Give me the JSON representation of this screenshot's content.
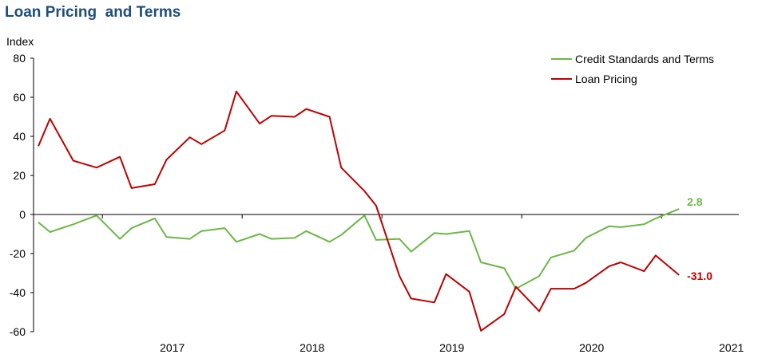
{
  "chart_data": {
    "type": "line",
    "title": "Loan Pricing  and Terms",
    "ylabel": "Index",
    "xlabel": "",
    "ylim": [
      -60,
      80
    ],
    "yticks": [
      80,
      60,
      40,
      20,
      0,
      -20,
      -40,
      -60
    ],
    "x_tick_labels": [
      "2017",
      "2018",
      "2019",
      "2020",
      "2021"
    ],
    "x": [
      "2016-07",
      "2016-08",
      "2016-10",
      "2016-12",
      "2017-02",
      "2017-03",
      "2017-05",
      "2017-06",
      "2017-08",
      "2017-09",
      "2017-11",
      "2017-12",
      "2018-02",
      "2018-03",
      "2018-05",
      "2018-06",
      "2018-08",
      "2018-09",
      "2018-11",
      "2018-12",
      "2019-02",
      "2019-03",
      "2019-05",
      "2019-06",
      "2019-08",
      "2019-09",
      "2019-11",
      "2019-12",
      "2020-02",
      "2020-03",
      "2020-05",
      "2020-06",
      "2020-08",
      "2020-09",
      "2020-11",
      "2020-12",
      "2021-02"
    ],
    "series": [
      {
        "name": "Credit Standards and Terms",
        "color": "#6ab845",
        "values": [
          -4,
          -9,
          -5,
          -0.5,
          -12.5,
          -7,
          -2,
          -11.5,
          -12.5,
          -8.5,
          -7,
          -14,
          -10,
          -12.5,
          -12,
          -8.5,
          -14,
          -10.5,
          -0.5,
          -13,
          -12.5,
          -19,
          -9.5,
          -10,
          -8.5,
          -24.5,
          -27.5,
          -38,
          -31.5,
          -22,
          -18.5,
          -12,
          -6,
          -6.5,
          -5,
          -2,
          2.8
        ],
        "end_label": "2.8"
      },
      {
        "name": "Loan Pricing",
        "color": "#c00000",
        "values": [
          35,
          49,
          27.5,
          24,
          29.5,
          13.5,
          15.5,
          28,
          39.5,
          36,
          43,
          63,
          46.5,
          50.5,
          50,
          54,
          50,
          24,
          12,
          4.5,
          -31.5,
          -43,
          -45,
          -30.5,
          -39.5,
          -59.5,
          -51,
          -37,
          -49.5,
          -38,
          -38,
          -35,
          -26.5,
          -24.5,
          -29,
          -21,
          -31
        ],
        "end_label": "-31.0"
      }
    ],
    "grid": false,
    "legend_position": "top-right"
  }
}
